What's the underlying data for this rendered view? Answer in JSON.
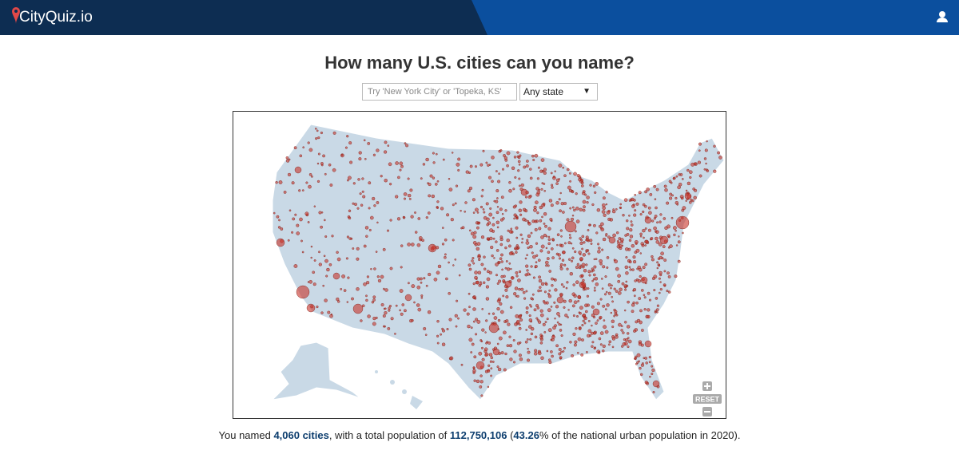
{
  "header": {
    "logo": "CityQuiz.io"
  },
  "quiz": {
    "title": "How many U.S. cities can you name?",
    "input_placeholder": "Try 'New York City' or 'Topeka, KS'",
    "state_select": "Any state"
  },
  "map": {
    "reset": "RESET"
  },
  "summary": {
    "prefix": "You named ",
    "count": "4,060 cities",
    "middle": ", with a total population of ",
    "population": "112,750,106",
    "open": " (",
    "percent": "43.26",
    "suffix": "% of the national urban population in 2020)."
  }
}
